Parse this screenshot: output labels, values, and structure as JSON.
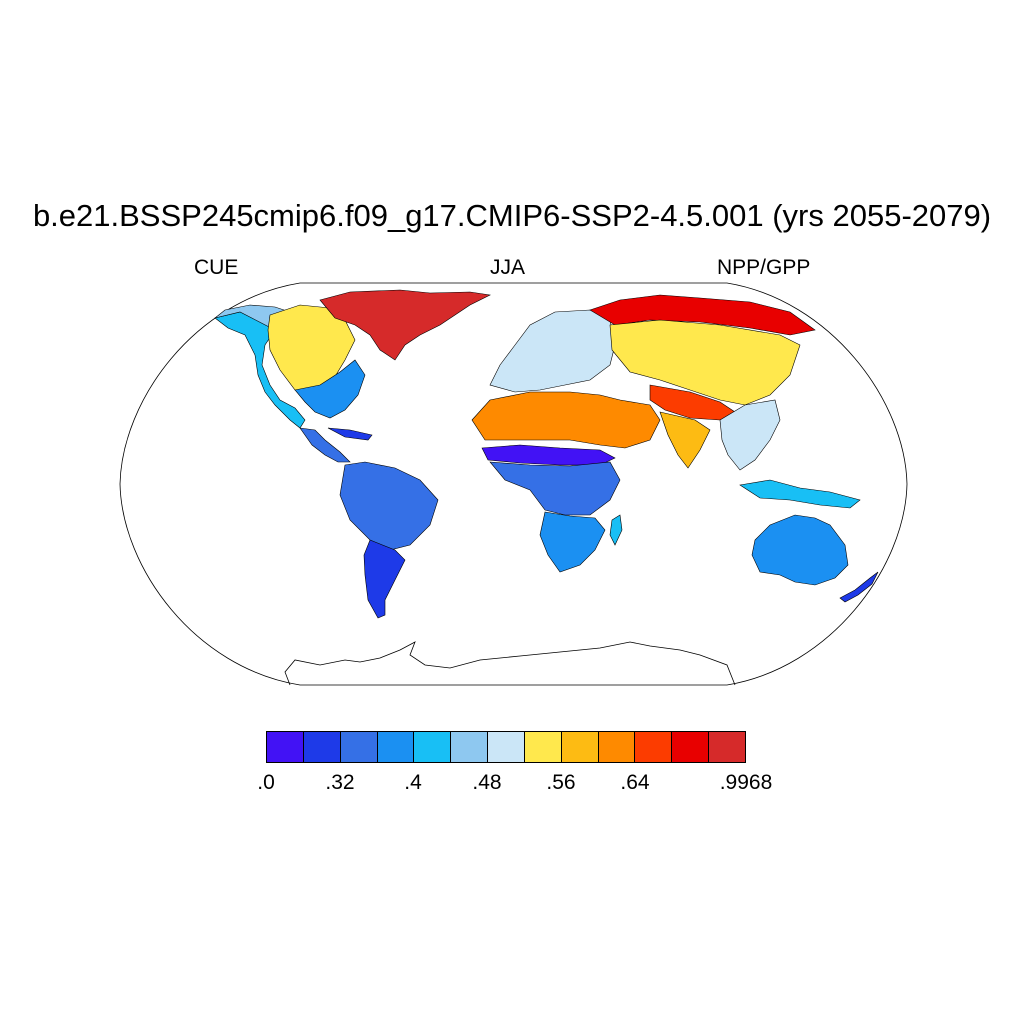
{
  "title": "b.e21.BSSP245cmip6.f09_g17.CMIP6-SSP2-4.5.001 (yrs 2055-2079)",
  "subtitles": {
    "left": "CUE",
    "center": "JJA",
    "right": "NPP/GPP"
  },
  "map": {
    "projection": "Robinson",
    "variable": "CUE (NPP/GPP)",
    "season": "JJA",
    "regions": [
      {
        "name": "Greenland / Canadian Arctic",
        "level": 12
      },
      {
        "name": "Alaska",
        "level": 5
      },
      {
        "name": "Canada interior",
        "level": 7
      },
      {
        "name": "Eastern United States",
        "level": 3
      },
      {
        "name": "Western United States",
        "level": 4
      },
      {
        "name": "Central America",
        "level": 2
      },
      {
        "name": "Amazon",
        "level": 2
      },
      {
        "name": "Southern South America",
        "level": 1
      },
      {
        "name": "Europe",
        "level": 6
      },
      {
        "name": "Northern Siberia",
        "level": 11
      },
      {
        "name": "Central Asia",
        "level": 7
      },
      {
        "name": "Sahel",
        "level": 0
      },
      {
        "name": "Sahara / Arabia",
        "level": 9
      },
      {
        "name": "Central Africa",
        "level": 2
      },
      {
        "name": "Southern Africa",
        "level": 3
      },
      {
        "name": "Tibet",
        "level": 10
      },
      {
        "name": "India",
        "level": 8
      },
      {
        "name": "Southeast Asia",
        "level": 6
      },
      {
        "name": "Maritime Continent",
        "level": 4
      },
      {
        "name": "Australia",
        "level": 3
      },
      {
        "name": "New Zealand",
        "level": 1
      }
    ]
  },
  "colorbar": {
    "colors": [
      "#4212f5",
      "#1e3ae8",
      "#3570e6",
      "#1b90f2",
      "#18bff5",
      "#8ec8f0",
      "#cbe6f7",
      "#ffe84d",
      "#fdbb13",
      "#fe8a00",
      "#fc3c00",
      "#e80000",
      "#d62a2a"
    ],
    "tick_labels": [
      ".0",
      ".32",
      ".4",
      ".48",
      ".56",
      ".64",
      ".9968"
    ]
  }
}
